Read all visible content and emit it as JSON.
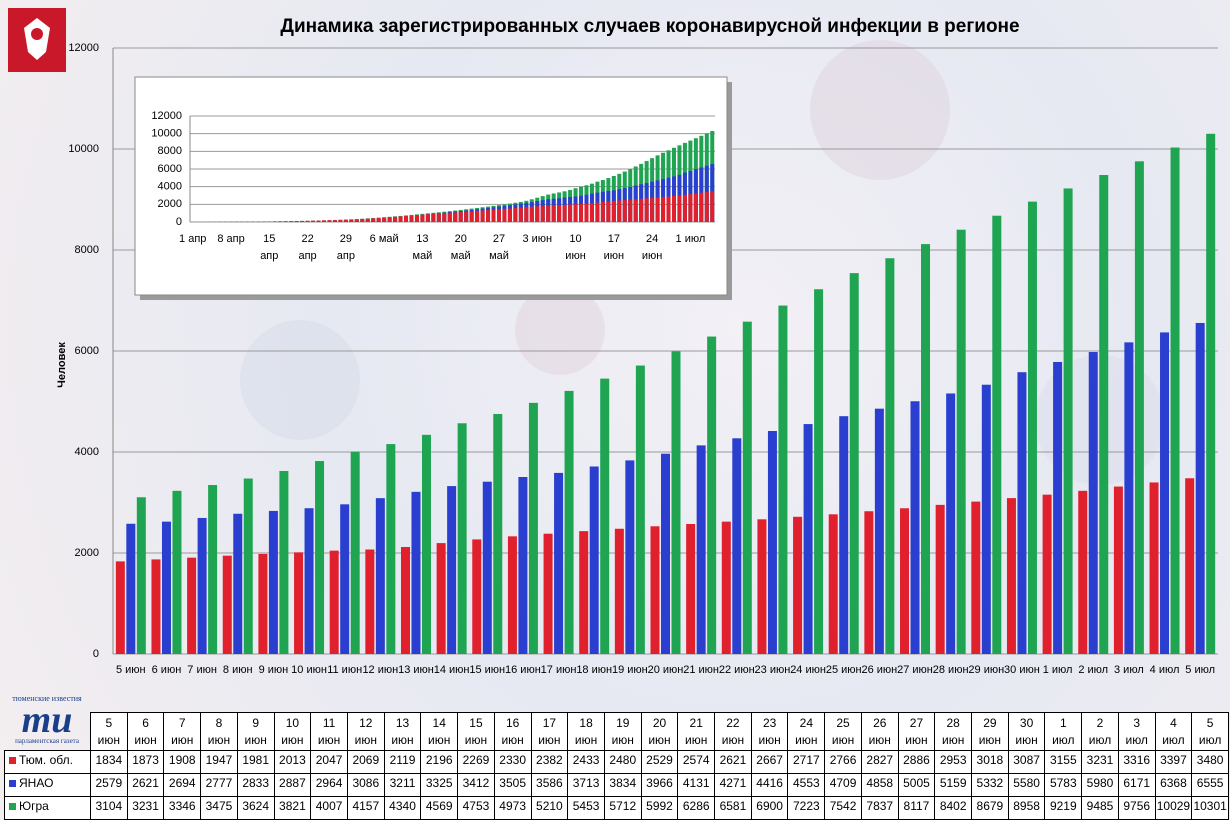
{
  "source_logo": {
    "top": "тюменские известия",
    "mark": "ти",
    "bottom": "парламентская газета"
  },
  "chart_data": [
    {
      "type": "bar",
      "layout": "grouped",
      "title": "Динамика зарегистрированных случаев коронавирусной инфекции в регионе",
      "y_label": "Человек",
      "categories": [
        "5 июн",
        "6 июн",
        "7 июн",
        "8 июн",
        "9 июн",
        "10 июн",
        "11 июн",
        "12 июн",
        "13 июн",
        "14 июн",
        "15 июн",
        "16 июн",
        "17 июн",
        "18 июн",
        "19 июн",
        "20 июн",
        "21 июн",
        "22 июн",
        "23 июн",
        "24 июн",
        "25 июн",
        "26 июн",
        "27 июн",
        "28 июн",
        "29 июн",
        "30 июн",
        "1 июл",
        "2 июл",
        "3 июл",
        "4 июл",
        "5 июл"
      ],
      "series": [
        {
          "name": "Тюм. обл.",
          "color": "#e0202c",
          "values": [
            1834,
            1873,
            1908,
            1947,
            1981,
            2013,
            2047,
            2069,
            2119,
            2196,
            2269,
            2330,
            2382,
            2433,
            2480,
            2529,
            2574,
            2621,
            2667,
            2717,
            2766,
            2827,
            2886,
            2953,
            3018,
            3087,
            3155,
            3231,
            3316,
            3397,
            3480
          ]
        },
        {
          "name": "ЯНАО",
          "color": "#2a3fd0",
          "values": [
            2579,
            2621,
            2694,
            2777,
            2833,
            2887,
            2964,
            3086,
            3211,
            3325,
            3412,
            3505,
            3586,
            3713,
            3834,
            3966,
            4131,
            4271,
            4416,
            4553,
            4709,
            4858,
            5005,
            5159,
            5332,
            5580,
            5783,
            5980,
            6171,
            6368,
            6555
          ]
        },
        {
          "name": "Югра",
          "color": "#1fa552",
          "values": [
            3104,
            3231,
            3346,
            3475,
            3624,
            3821,
            4007,
            4157,
            4340,
            4569,
            4753,
            4973,
            5210,
            5453,
            5712,
            5992,
            6286,
            6581,
            6900,
            7223,
            7542,
            7837,
            8117,
            8402,
            8679,
            8958,
            9219,
            9485,
            9756,
            10029,
            10301
          ]
        }
      ],
      "ylim": [
        0,
        12000
      ],
      "yticks": [
        0,
        2000,
        4000,
        6000,
        8000,
        10000,
        12000
      ],
      "grid": true,
      "data_table": true
    },
    {
      "type": "bar",
      "layout": "overlap",
      "categories": [
        "1 апр",
        null,
        null,
        null,
        null,
        null,
        null,
        "8 апр",
        null,
        null,
        null,
        null,
        null,
        null,
        "15 апр",
        null,
        null,
        null,
        null,
        null,
        null,
        "22 апр",
        null,
        null,
        null,
        null,
        null,
        null,
        "29 апр",
        null,
        null,
        null,
        null,
        null,
        null,
        "6 май",
        null,
        null,
        null,
        null,
        null,
        null,
        "13 май",
        null,
        null,
        null,
        null,
        null,
        null,
        "20 май",
        null,
        null,
        null,
        null,
        null,
        null,
        "27 май",
        null,
        null,
        null,
        null,
        null,
        null,
        "3 июн",
        null,
        null,
        null,
        null,
        null,
        null,
        "10 июн",
        null,
        null,
        null,
        null,
        null,
        null,
        "17 июн",
        null,
        null,
        null,
        null,
        null,
        null,
        "24 июн",
        null,
        null,
        null,
        null,
        null,
        null,
        "1 июл",
        null,
        null,
        null,
        null
      ],
      "series": [
        {
          "color": "#e0202c",
          "values": [
            10,
            12,
            14,
            17,
            20,
            23,
            26,
            30,
            34,
            38,
            42,
            47,
            52,
            56,
            60,
            68,
            77,
            87,
            98,
            110,
            123,
            137,
            152,
            168,
            185,
            203,
            222,
            242,
            263,
            285,
            300,
            335,
            375,
            415,
            455,
            500,
            545,
            590,
            635,
            680,
            730,
            780,
            830,
            870,
            900,
            945,
            990,
            1035,
            1080,
            1125,
            1170,
            1215,
            1260,
            1305,
            1350,
            1395,
            1440,
            1485,
            1530,
            1575,
            1620,
            1690,
            1730,
            1770,
            1800,
            1834,
            1873,
            1908,
            1947,
            1981,
            2013,
            2047,
            2069,
            2119,
            2196,
            2269,
            2330,
            2382,
            2433,
            2480,
            2529,
            2574,
            2621,
            2667,
            2717,
            2766,
            2827,
            2886,
            2953,
            3018,
            3087,
            3155,
            3231,
            3316,
            3397,
            3480
          ]
        },
        {
          "color": "#2a3fd0",
          "values": [
            0,
            0,
            1,
            1,
            2,
            3,
            4,
            5,
            6,
            8,
            10,
            12,
            14,
            17,
            20,
            24,
            28,
            33,
            38,
            44,
            50,
            57,
            65,
            74,
            84,
            95,
            107,
            120,
            135,
            150,
            170,
            200,
            240,
            290,
            340,
            400,
            460,
            520,
            580,
            640,
            700,
            760,
            820,
            880,
            940,
            1000,
            1060,
            1120,
            1180,
            1240,
            1300,
            1370,
            1440,
            1510,
            1580,
            1660,
            1740,
            1820,
            1900,
            1990,
            2080,
            2160,
            2260,
            2370,
            2480,
            2579,
            2621,
            2694,
            2777,
            2833,
            2887,
            2964,
            3086,
            3211,
            3325,
            3412,
            3505,
            3586,
            3713,
            3834,
            3966,
            4131,
            4271,
            4416,
            4553,
            4709,
            4858,
            5005,
            5159,
            5332,
            5580,
            5783,
            5980,
            6171,
            6368,
            6555
          ]
        },
        {
          "color": "#1fa552",
          "values": [
            5,
            6,
            8,
            10,
            12,
            15,
            18,
            22,
            26,
            30,
            35,
            40,
            46,
            52,
            58,
            66,
            75,
            85,
            96,
            108,
            121,
            135,
            150,
            166,
            184,
            204,
            226,
            250,
            276,
            304,
            335,
            370,
            410,
            450,
            495,
            540,
            590,
            640,
            690,
            745,
            800,
            860,
            920,
            980,
            1040,
            1100,
            1165,
            1230,
            1300,
            1370,
            1440,
            1515,
            1590,
            1670,
            1750,
            1830,
            1915,
            2000,
            2090,
            2180,
            2270,
            2400,
            2570,
            2750,
            2930,
            3104,
            3231,
            3346,
            3475,
            3624,
            3821,
            4007,
            4157,
            4340,
            4569,
            4753,
            4973,
            5210,
            5453,
            5712,
            5992,
            6286,
            6581,
            6900,
            7223,
            7542,
            7837,
            8117,
            8402,
            8679,
            8958,
            9219,
            9485,
            9756,
            10029,
            10301
          ]
        }
      ],
      "ylim": [
        0,
        12000
      ],
      "yticks": [
        0,
        2000,
        4000,
        6000,
        8000,
        10000,
        12000
      ],
      "grid": true
    }
  ]
}
